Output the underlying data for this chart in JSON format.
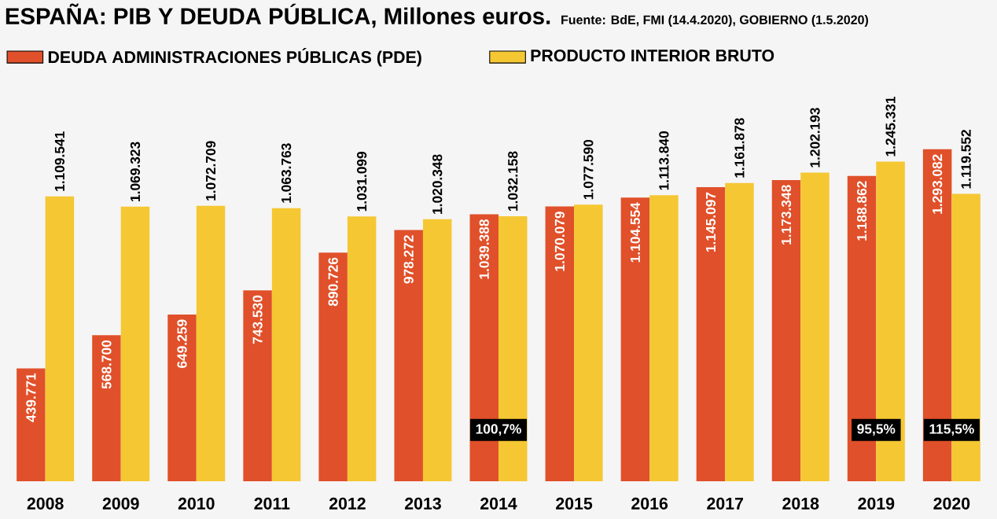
{
  "chart_data": {
    "type": "bar",
    "title": "ESPAÑA: PIB Y DEUDA PÚBLICA, Millones euros.",
    "annotations": [
      "Fuente: BdE, FMI (14.4.2020), GOBIERNO (1.5.2020)",
      {
        "text": "100,7%",
        "x": "2014",
        "y": 200000
      },
      {
        "text": "95,5%",
        "x": "2019",
        "y": 200000
      },
      {
        "text": "115,5%",
        "x": "2020",
        "y": 200000
      }
    ],
    "categories": [
      "2008",
      "2009",
      "2010",
      "2011",
      "2012",
      "2013",
      "2014",
      "2015",
      "2016",
      "2017",
      "2018",
      "2019",
      "2020"
    ],
    "series": [
      {
        "name": "DEUDA ADMINISTRACIONES PÚBLICAS (PDE)",
        "color": "#e0502a",
        "values": [
          439771,
          568700,
          649259,
          743530,
          890726,
          978272,
          1039388,
          1070079,
          1104554,
          1145097,
          1173348,
          1188862,
          1293082
        ],
        "value_labels": [
          "439.771",
          "568.700",
          "649.259",
          "743.530",
          "890.726",
          "978.272",
          "1.039.388",
          "1.070.079",
          "1.104.554",
          "1.145.097",
          "1.173.348",
          "1.188.862",
          "1.293.082"
        ]
      },
      {
        "name": "PRODUCTO INTERIOR BRUTO",
        "color": "#f5c733",
        "values": [
          1109541,
          1069323,
          1072709,
          1063763,
          1031099,
          1020348,
          1032158,
          1077590,
          1113840,
          1161878,
          1202193,
          1245331,
          1119552
        ],
        "value_labels": [
          "1.109.541",
          "1.069.323",
          "1.072.709",
          "1.063.763",
          "1.031.099",
          "1.020.348",
          "1.032.158",
          "1.077.590",
          "1.113.840",
          "1.161.878",
          "1.202.193",
          "1.245.331",
          "1.119.552"
        ]
      }
    ],
    "legend": "top left",
    "tick_labels": "x",
    "grid": false
  }
}
